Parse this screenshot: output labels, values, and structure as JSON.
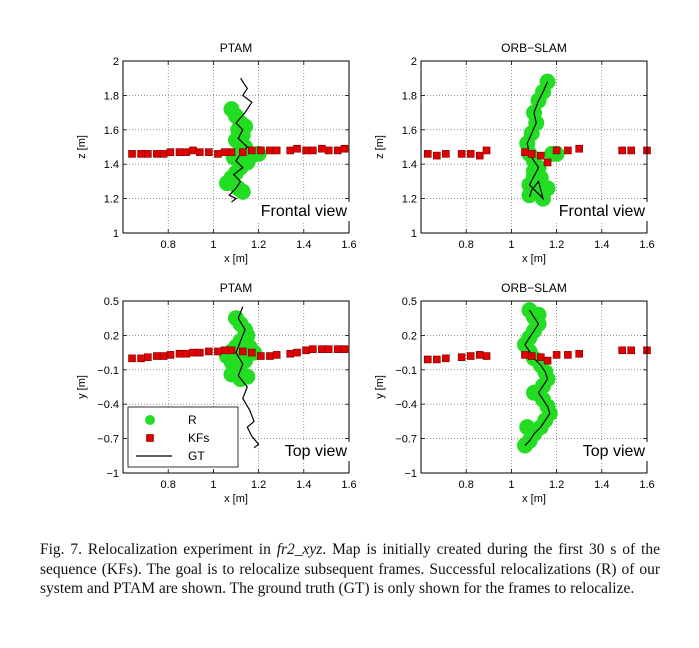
{
  "chart_data": [
    {
      "type": "scatter",
      "title": "PTAM",
      "xlabel": "x [m]",
      "ylabel": "z [m]",
      "xlim": [
        0.6,
        1.6
      ],
      "ylim": [
        1,
        2
      ],
      "xticks": [
        0.8,
        1,
        1.2,
        1.4,
        1.6
      ],
      "yticks": [
        1,
        1.2,
        1.4,
        1.6,
        1.8,
        2
      ],
      "tick_labels_x": [
        "0.8",
        "1",
        "1.2",
        "1.4",
        "1.6"
      ],
      "tick_labels_y": [
        "1",
        "1.2",
        "1.4",
        "1.6",
        "1.8",
        "2"
      ],
      "grid": true,
      "annotation": "Frontal view",
      "series": [
        {
          "name": "KFs",
          "marker": "square",
          "color": "#e00000",
          "x": [
            0.64,
            0.68,
            0.71,
            0.75,
            0.78,
            0.81,
            0.85,
            0.88,
            0.91,
            0.94,
            0.98,
            1.02,
            1.05,
            1.08,
            1.13,
            1.17,
            1.21,
            1.25,
            1.28,
            1.34,
            1.37,
            1.41,
            1.44,
            1.48,
            1.51,
            1.55,
            1.58
          ],
          "y": [
            1.46,
            1.46,
            1.46,
            1.46,
            1.46,
            1.47,
            1.47,
            1.47,
            1.48,
            1.47,
            1.47,
            1.46,
            1.47,
            1.47,
            1.47,
            1.48,
            1.48,
            1.48,
            1.48,
            1.48,
            1.49,
            1.48,
            1.48,
            1.49,
            1.48,
            1.48,
            1.49
          ]
        },
        {
          "name": "R",
          "marker": "circle",
          "color": "#22dd22",
          "x": [
            1.08,
            1.1,
            1.12,
            1.11,
            1.13,
            1.1,
            1.12,
            1.14,
            1.12,
            1.1,
            1.13,
            1.15,
            1.17,
            1.2,
            1.12,
            1.1,
            1.08,
            1.06,
            1.11,
            1.13,
            1.09,
            1.14
          ],
          "y": [
            1.72,
            1.68,
            1.64,
            1.6,
            1.57,
            1.54,
            1.52,
            1.5,
            1.47,
            1.45,
            1.43,
            1.41,
            1.45,
            1.46,
            1.38,
            1.35,
            1.32,
            1.29,
            1.26,
            1.24,
            1.44,
            1.62
          ]
        },
        {
          "name": "GT",
          "marker": "line",
          "color": "#000000",
          "x": [
            1.12,
            1.15,
            1.13,
            1.17,
            1.14,
            1.1,
            1.13,
            1.11,
            1.15,
            1.12,
            1.1,
            1.13,
            1.09,
            1.12,
            1.1,
            1.07,
            1.1,
            1.08
          ],
          "y": [
            1.9,
            1.84,
            1.8,
            1.76,
            1.7,
            1.64,
            1.6,
            1.55,
            1.5,
            1.46,
            1.42,
            1.38,
            1.34,
            1.3,
            1.26,
            1.22,
            1.2,
            1.18
          ]
        }
      ]
    },
    {
      "type": "scatter",
      "title": "ORB−SLAM",
      "xlabel": "x [m]",
      "ylabel": "z [m]",
      "xlim": [
        0.6,
        1.6
      ],
      "ylim": [
        1,
        2
      ],
      "xticks": [
        0.8,
        1,
        1.2,
        1.4,
        1.6
      ],
      "yticks": [
        1,
        1.2,
        1.4,
        1.6,
        1.8,
        2
      ],
      "tick_labels_x": [
        "0.8",
        "1",
        "1.2",
        "1.4",
        "1.6"
      ],
      "tick_labels_y": [
        "1",
        "1.2",
        "1.4",
        "1.6",
        "1.8",
        "2"
      ],
      "grid": true,
      "annotation": "Frontal view",
      "series": [
        {
          "name": "KFs",
          "marker": "square",
          "color": "#e00000",
          "x": [
            0.63,
            0.67,
            0.71,
            0.78,
            0.82,
            0.86,
            0.89,
            1.06,
            1.09,
            1.13,
            1.16,
            1.2,
            1.25,
            1.3,
            1.49,
            1.53,
            1.6
          ],
          "y": [
            1.46,
            1.45,
            1.46,
            1.46,
            1.46,
            1.45,
            1.48,
            1.47,
            1.46,
            1.45,
            1.41,
            1.48,
            1.48,
            1.49,
            1.48,
            1.48,
            1.48
          ]
        },
        {
          "name": "R",
          "marker": "circle",
          "color": "#22dd22",
          "x": [
            1.16,
            1.14,
            1.12,
            1.1,
            1.11,
            1.09,
            1.07,
            1.08,
            1.1,
            1.12,
            1.1,
            1.08,
            1.11,
            1.14,
            1.16,
            1.13,
            1.1,
            1.08,
            1.2,
            1.18
          ],
          "y": [
            1.88,
            1.82,
            1.77,
            1.7,
            1.64,
            1.58,
            1.52,
            1.46,
            1.42,
            1.38,
            1.33,
            1.28,
            1.24,
            1.2,
            1.26,
            1.32,
            1.36,
            1.22,
            1.46,
            1.46
          ]
        },
        {
          "name": "GT",
          "marker": "line",
          "color": "#000000",
          "x": [
            1.16,
            1.14,
            1.12,
            1.1,
            1.11,
            1.09,
            1.07,
            1.08,
            1.1,
            1.12,
            1.1,
            1.08,
            1.11,
            1.14,
            1.12,
            1.09,
            1.08
          ],
          "y": [
            1.88,
            1.82,
            1.77,
            1.7,
            1.64,
            1.58,
            1.52,
            1.46,
            1.42,
            1.38,
            1.33,
            1.28,
            1.24,
            1.2,
            1.3,
            1.25,
            1.21
          ]
        }
      ]
    },
    {
      "type": "scatter",
      "title": "PTAM",
      "xlabel": "x [m]",
      "ylabel": "y [m]",
      "xlim": [
        0.6,
        1.6
      ],
      "ylim": [
        -1,
        0.5
      ],
      "xticks": [
        0.8,
        1,
        1.2,
        1.4,
        1.6
      ],
      "yticks": [
        -1,
        -0.7,
        -0.4,
        -0.1,
        0.2,
        0.5
      ],
      "tick_labels_x": [
        "0.8",
        "1",
        "1.2",
        "1.4",
        "1.6"
      ],
      "tick_labels_y": [
        "−1",
        "−0.7",
        "−0.4",
        "−0.1",
        "0.2",
        "0.5"
      ],
      "grid": true,
      "annotation": "Top view",
      "legend": {
        "position": "bottom-left",
        "entries": [
          "R",
          "KFs",
          "GT"
        ]
      },
      "series": [
        {
          "name": "KFs",
          "marker": "square",
          "color": "#e00000",
          "x": [
            0.64,
            0.68,
            0.71,
            0.75,
            0.78,
            0.81,
            0.85,
            0.88,
            0.91,
            0.94,
            0.98,
            1.02,
            1.05,
            1.08,
            1.13,
            1.17,
            1.21,
            1.25,
            1.28,
            1.34,
            1.37,
            1.41,
            1.44,
            1.48,
            1.51,
            1.55,
            1.58
          ],
          "y": [
            0.0,
            0.0,
            0.01,
            0.02,
            0.02,
            0.03,
            0.04,
            0.04,
            0.05,
            0.05,
            0.06,
            0.06,
            0.07,
            0.07,
            0.06,
            0.05,
            0.02,
            0.02,
            0.03,
            0.04,
            0.05,
            0.07,
            0.08,
            0.08,
            0.08,
            0.08,
            0.08
          ]
        },
        {
          "name": "R",
          "marker": "circle",
          "color": "#22dd22",
          "x": [
            1.1,
            1.12,
            1.14,
            1.15,
            1.12,
            1.1,
            1.08,
            1.06,
            1.08,
            1.1,
            1.12,
            1.15,
            1.18,
            1.14,
            1.1,
            1.08,
            1.12,
            1.16
          ],
          "y": [
            0.35,
            0.3,
            0.25,
            0.2,
            0.15,
            0.1,
            0.06,
            0.02,
            -0.03,
            -0.08,
            -0.12,
            -0.16,
            0.05,
            -0.02,
            0.02,
            -0.14,
            -0.18,
            0.1
          ]
        },
        {
          "name": "GT",
          "marker": "line",
          "color": "#000000",
          "x": [
            1.13,
            1.11,
            1.14,
            1.12,
            1.1,
            1.13,
            1.11,
            1.15,
            1.13,
            1.16,
            1.18,
            1.15,
            1.17,
            1.2,
            1.18
          ],
          "y": [
            0.45,
            0.35,
            0.25,
            0.15,
            0.05,
            -0.05,
            -0.15,
            -0.25,
            -0.35,
            -0.45,
            -0.55,
            -0.6,
            -0.68,
            -0.75,
            -0.78
          ]
        }
      ]
    },
    {
      "type": "scatter",
      "title": "ORB−SLAM",
      "xlabel": "x [m]",
      "ylabel": "y [m]",
      "xlim": [
        0.6,
        1.6
      ],
      "ylim": [
        -1,
        0.5
      ],
      "xticks": [
        0.8,
        1,
        1.2,
        1.4,
        1.6
      ],
      "yticks": [
        -1,
        -0.7,
        -0.4,
        -0.1,
        0.2,
        0.5
      ],
      "tick_labels_x": [
        "0.8",
        "1",
        "1.2",
        "1.4",
        "1.6"
      ],
      "tick_labels_y": [
        "−1",
        "−0.7",
        "−0.4",
        "−0.1",
        "0.2",
        "0.5"
      ],
      "grid": true,
      "annotation": "Top view",
      "series": [
        {
          "name": "KFs",
          "marker": "square",
          "color": "#e00000",
          "x": [
            0.63,
            0.67,
            0.71,
            0.78,
            0.82,
            0.86,
            0.89,
            1.06,
            1.09,
            1.13,
            1.16,
            1.2,
            1.25,
            1.3,
            1.49,
            1.53,
            1.6
          ],
          "y": [
            -0.01,
            -0.01,
            0.0,
            0.01,
            0.02,
            0.03,
            0.02,
            0.03,
            0.02,
            0.01,
            -0.02,
            0.03,
            0.03,
            0.04,
            0.07,
            0.07,
            0.07
          ]
        },
        {
          "name": "R",
          "marker": "circle",
          "color": "#22dd22",
          "x": [
            1.08,
            1.1,
            1.12,
            1.1,
            1.08,
            1.06,
            1.08,
            1.1,
            1.13,
            1.15,
            1.16,
            1.14,
            1.12,
            1.14,
            1.16,
            1.17,
            1.15,
            1.13,
            1.1,
            1.08,
            1.06,
            1.07,
            1.1,
            1.12
          ],
          "y": [
            0.42,
            0.36,
            0.3,
            0.24,
            0.18,
            0.12,
            0.06,
            0.0,
            -0.06,
            -0.12,
            -0.18,
            -0.24,
            -0.3,
            -0.36,
            -0.42,
            -0.48,
            -0.54,
            -0.6,
            -0.66,
            -0.72,
            -0.76,
            -0.6,
            -0.3,
            0.38
          ]
        },
        {
          "name": "GT",
          "marker": "line",
          "color": "#000000",
          "x": [
            1.08,
            1.1,
            1.12,
            1.1,
            1.08,
            1.06,
            1.08,
            1.1,
            1.13,
            1.15,
            1.16,
            1.14,
            1.12,
            1.14,
            1.16,
            1.17,
            1.15,
            1.13,
            1.1,
            1.08,
            1.06
          ],
          "y": [
            0.42,
            0.36,
            0.3,
            0.24,
            0.18,
            0.12,
            0.06,
            0.0,
            -0.06,
            -0.12,
            -0.18,
            -0.24,
            -0.3,
            -0.36,
            -0.42,
            -0.48,
            -0.54,
            -0.6,
            -0.66,
            -0.72,
            -0.76
          ]
        }
      ]
    }
  ],
  "caption": {
    "prefix": "Fig. 7.    Relocalization experiment in ",
    "dataset": "fr2_xyz",
    "text": ". Map is initially created during the first 30 s of the sequence (KFs). The goal is to relocalize subsequent frames. Successful relocalizations (R) of our system and PTAM are shown. The ground truth (GT) is only shown for the frames to relocalize."
  }
}
